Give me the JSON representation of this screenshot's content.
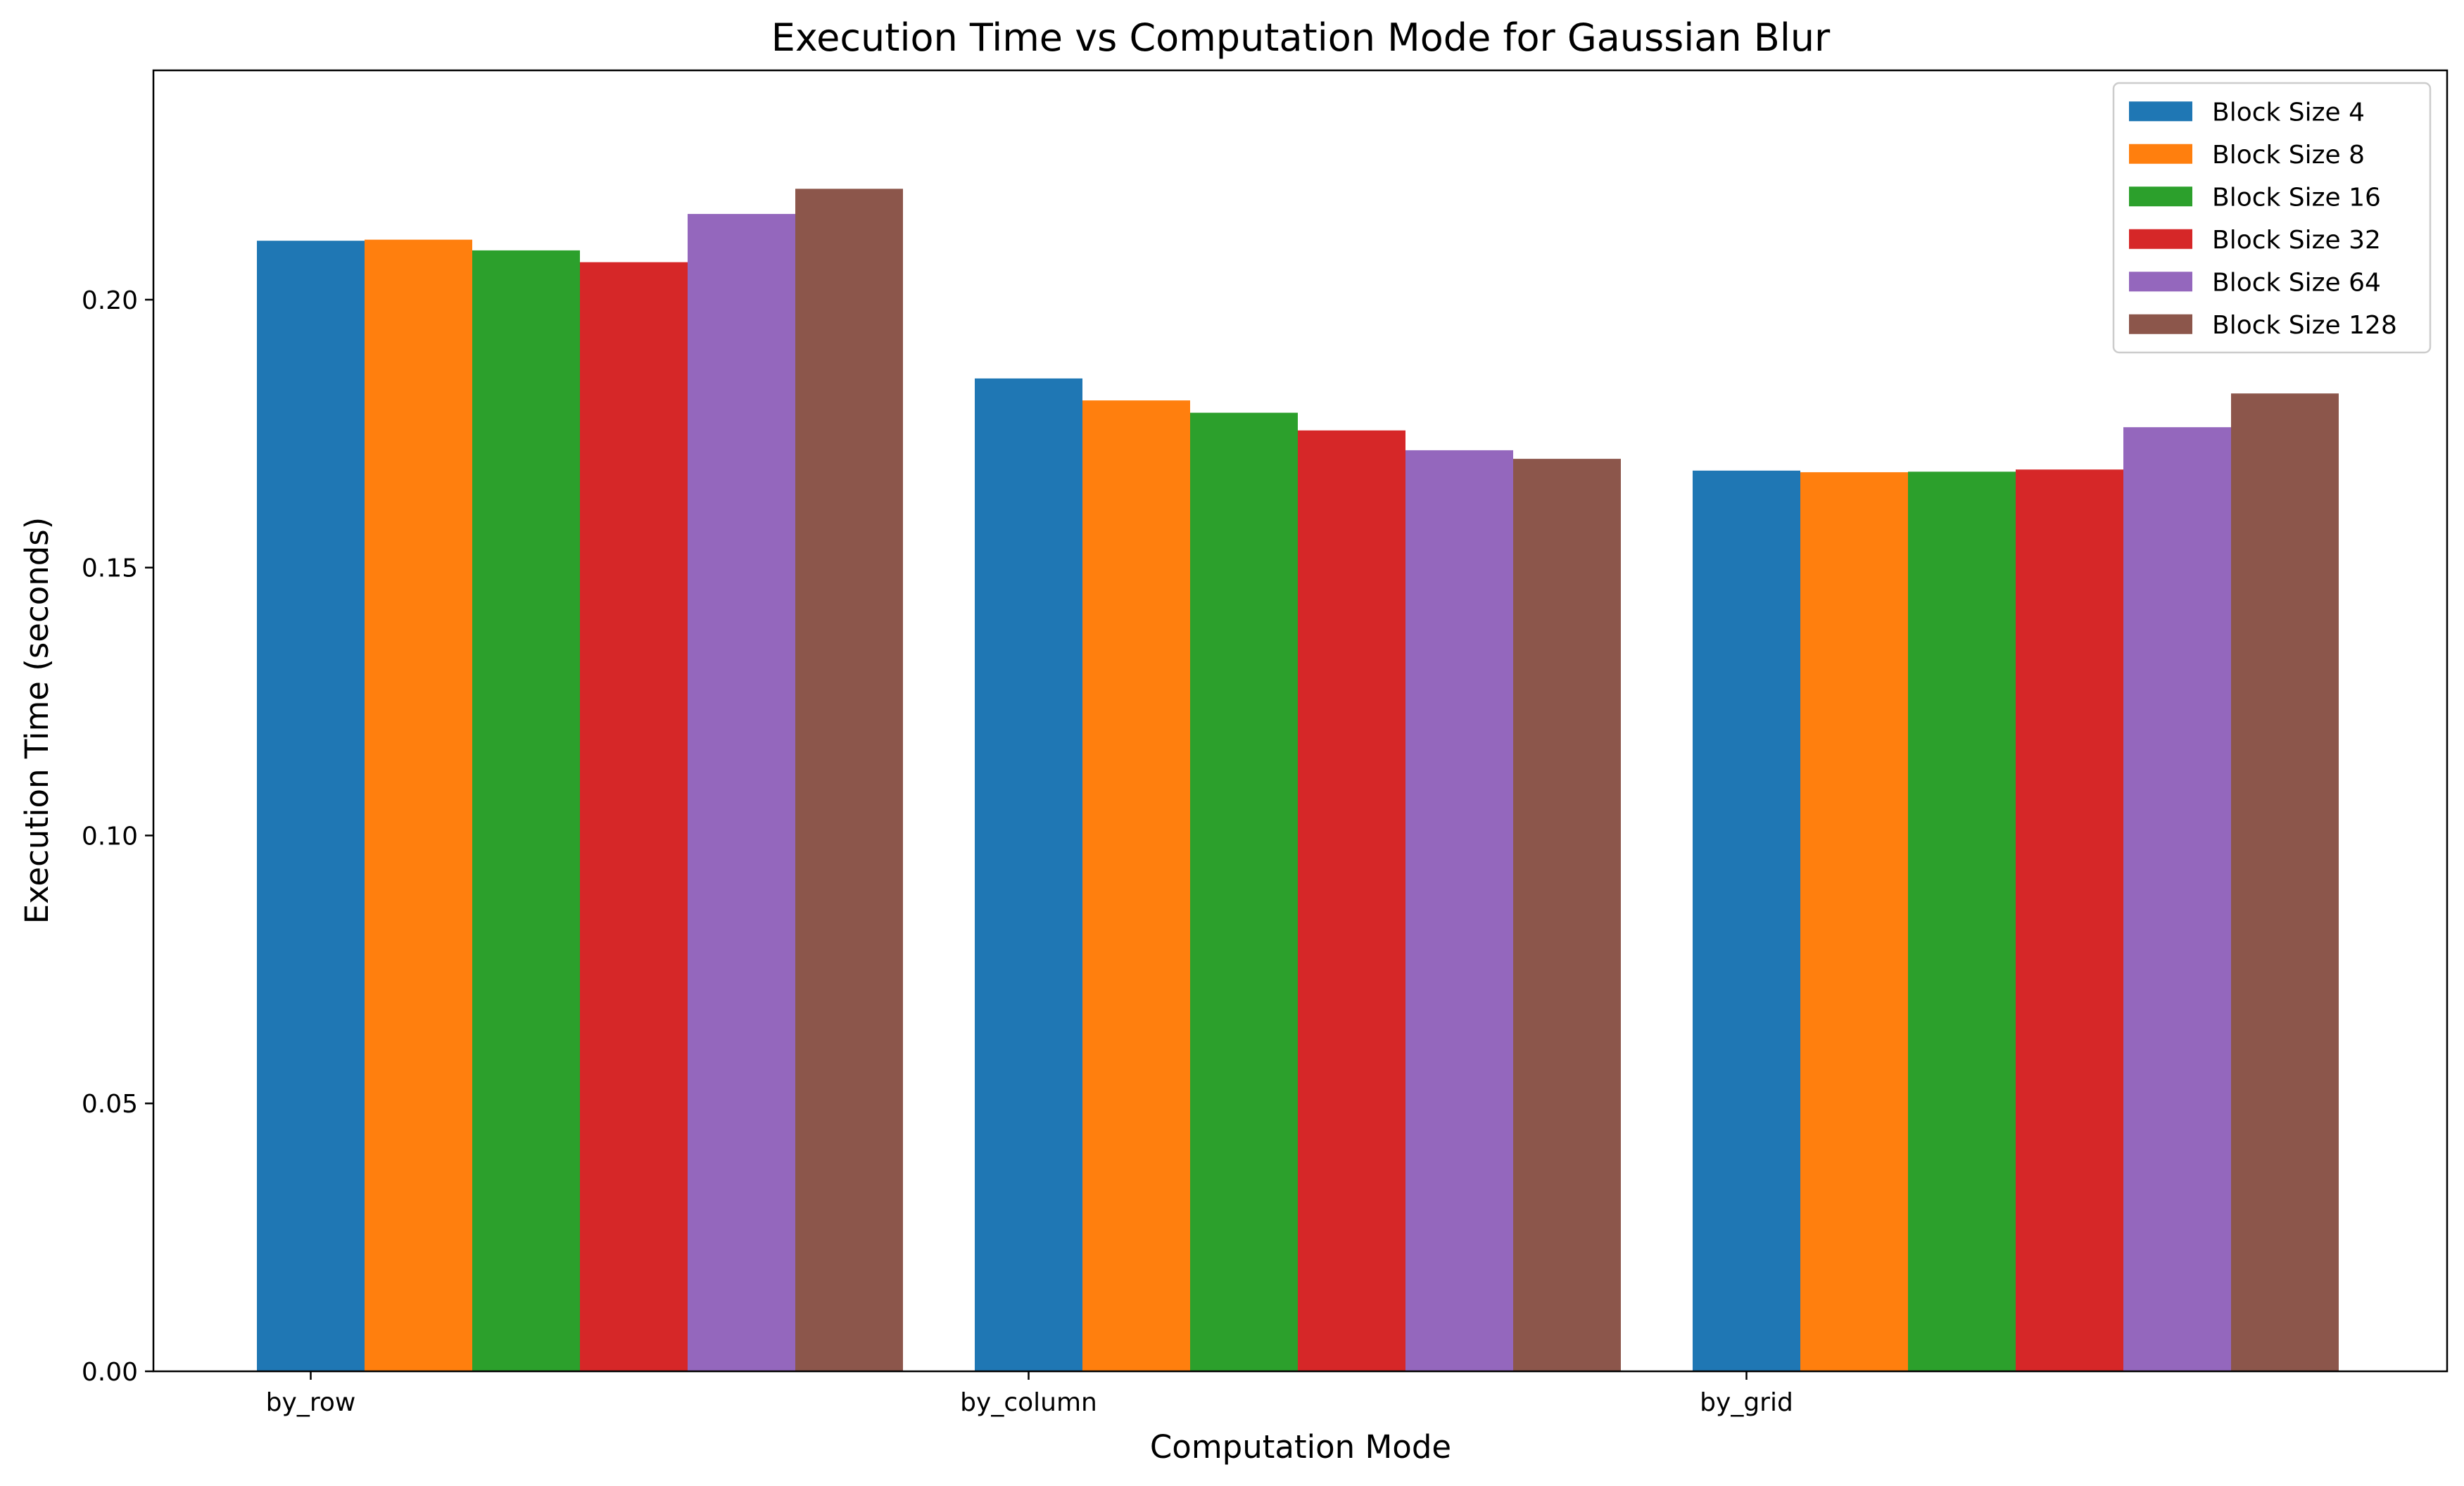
{
  "chart_data": {
    "type": "bar",
    "title": "Execution Time vs Computation Mode for Gaussian Blur",
    "xlabel": "Computation Mode",
    "ylabel": "Execution Time (seconds)",
    "categories": [
      "by_row",
      "by_column",
      "by_grid"
    ],
    "series": [
      {
        "name": "Block Size 4",
        "color": "#1f77b4",
        "values": [
          0.211,
          0.1853,
          0.1681
        ]
      },
      {
        "name": "Block Size 8",
        "color": "#ff7f0e",
        "values": [
          0.2112,
          0.1812,
          0.1678
        ]
      },
      {
        "name": "Block Size 16",
        "color": "#2ca02c",
        "values": [
          0.2092,
          0.1789,
          0.1679
        ]
      },
      {
        "name": "Block Size 32",
        "color": "#d62728",
        "values": [
          0.207,
          0.1756,
          0.1683
        ]
      },
      {
        "name": "Block Size 64",
        "color": "#9467bd",
        "values": [
          0.216,
          0.1719,
          0.1762
        ]
      },
      {
        "name": "Block Size 128",
        "color": "#8c564b",
        "values": [
          0.2207,
          0.1703,
          0.1825
        ]
      }
    ],
    "ylim": [
      0,
      0.2428
    ],
    "yticks": [
      0.0,
      0.05,
      0.1,
      0.15,
      0.2
    ],
    "ytick_labels": [
      "0.00",
      "0.05",
      "0.10",
      "0.15",
      "0.20"
    ],
    "grid": false,
    "legend_position": "top-right"
  }
}
